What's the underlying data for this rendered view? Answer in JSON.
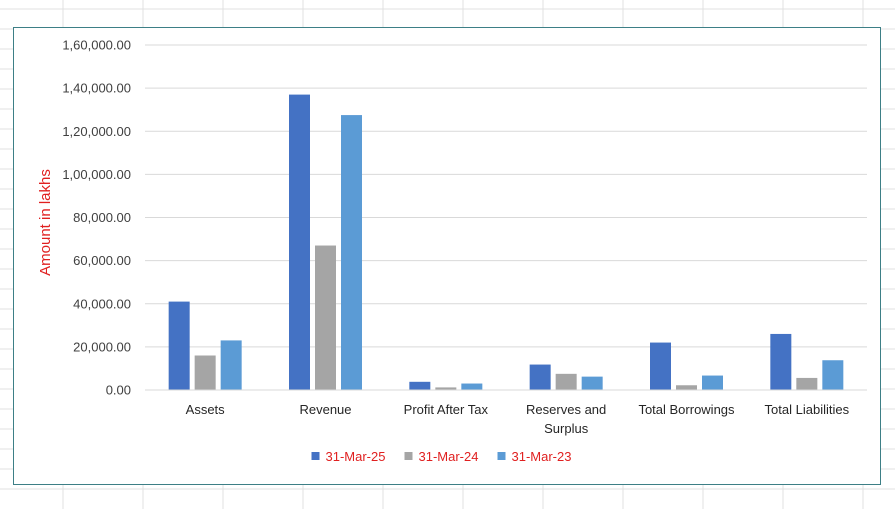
{
  "chart_data": {
    "type": "bar",
    "title": "",
    "xlabel": "",
    "ylabel": "Amount in lakhs",
    "ylim": [
      0,
      160000
    ],
    "yticks": [
      "0.00",
      "20,000.00",
      "40,000.00",
      "60,000.00",
      "80,000.00",
      "1,00,000.00",
      "1,20,000.00",
      "1,40,000.00",
      "1,60,000.00"
    ],
    "categories": [
      "Assets",
      "Revenue",
      "Profit After Tax",
      "Reserves and Surplus",
      "Total Borrowings",
      "Total Liabilities"
    ],
    "series": [
      {
        "name": "31-Mar-25",
        "color": "#4472c4",
        "values": [
          41000,
          137000,
          3800,
          11800,
          22000,
          26000
        ]
      },
      {
        "name": "31-Mar-24",
        "color": "#a5a5a5",
        "values": [
          16000,
          67000,
          1200,
          7500,
          2200,
          5600
        ]
      },
      {
        "name": "31-Mar-23",
        "color": "#5b9bd5",
        "values": [
          23000,
          127500,
          3000,
          6200,
          6700,
          13800
        ]
      }
    ],
    "grid": true,
    "legend": "bottom"
  }
}
